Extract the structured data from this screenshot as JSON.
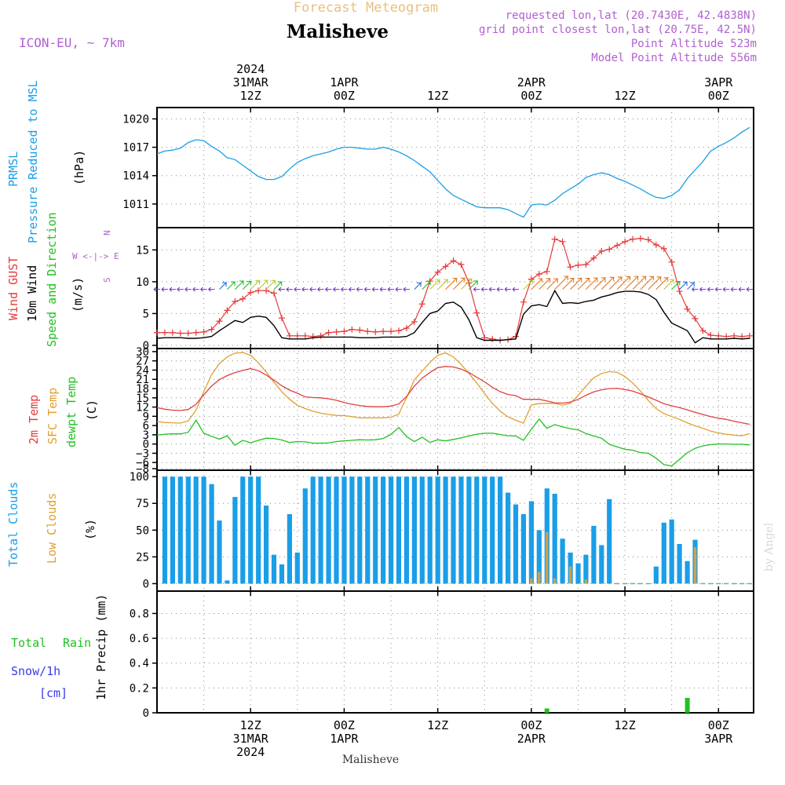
{
  "header": {
    "forecast_title": "Forecast Meteogram",
    "location": "Malisheve",
    "model": "ICON-EU, ~ 7km",
    "requested": "requested lon,lat (20.7430E, 42.4838N)",
    "gridpoint": "grid point closest lon,lat (20.75E, 42.5N)",
    "point_alt": "Point Altitude 523m",
    "model_alt": "Model Point Altitude 556m",
    "footer_location": "Malisheve",
    "credit": "by Angel"
  },
  "colors": {
    "pressure": "#1a9ee8",
    "gust": "#e63a3a",
    "wind": "#000000",
    "t2m": "#e04040",
    "sfc": "#e0a030",
    "dewpt": "#22c022",
    "total_clouds": "#1a9ee8",
    "low_clouds": "#c8a450",
    "rain": "#22c022",
    "snow": "#3a3aee",
    "header_purple": "#b060d0",
    "title_orange": "#e8c080"
  },
  "time_axis": {
    "top_labels": [
      {
        "x": 12,
        "lines": [
          "2024",
          "31MAR",
          "12Z"
        ]
      },
      {
        "x": 24,
        "lines": [
          "1APR",
          "00Z"
        ]
      },
      {
        "x": 36,
        "lines": [
          "12Z"
        ]
      },
      {
        "x": 48,
        "lines": [
          "2APR",
          "00Z"
        ]
      },
      {
        "x": 60,
        "lines": [
          "12Z"
        ]
      },
      {
        "x": 72,
        "lines": [
          "3APR",
          "00Z"
        ]
      }
    ],
    "bottom_labels": [
      {
        "x": 12,
        "lines": [
          "12Z",
          "31MAR",
          "2024"
        ]
      },
      {
        "x": 24,
        "lines": [
          "00Z",
          "1APR"
        ]
      },
      {
        "x": 36,
        "lines": [
          "12Z"
        ]
      },
      {
        "x": 48,
        "lines": [
          "00Z",
          "2APR"
        ]
      },
      {
        "x": 60,
        "lines": [
          "12Z"
        ]
      },
      {
        "x": 72,
        "lines": [
          "00Z",
          "3APR"
        ]
      }
    ],
    "range_hours": [
      0,
      76.5
    ]
  },
  "panels": {
    "pressure": {
      "labels": [
        "PRMSL",
        "Pressure Reduced to MSL",
        "(hPa)"
      ]
    },
    "wind": {
      "labels": [
        "Wind GUST",
        "10m Wind",
        "Speed and Direction",
        "(m/s)"
      ],
      "compass": [
        "N",
        "W <-|-> E",
        "S"
      ]
    },
    "temp": {
      "labels": [
        "2m Temp",
        "SFC Temp",
        "dewpt Temp",
        "(C)"
      ]
    },
    "clouds": {
      "labels": [
        "Total Clouds",
        "Low Clouds",
        "(%)"
      ]
    },
    "precip": {
      "labels": [
        "Total",
        "Rain",
        "Snow/1h",
        "[cm]",
        "1hr Precip (mm)"
      ]
    }
  },
  "chart_data": [
    {
      "type": "line",
      "ylabel": "Pressure Reduced to MSL (hPa)",
      "ylim": [
        1008.5,
        1021.2
      ],
      "yticks": [
        1011,
        1014,
        1017,
        1020
      ],
      "x": [
        0,
        1,
        2,
        3,
        4,
        5,
        6,
        7,
        8,
        9,
        10,
        11,
        12,
        13,
        14,
        15,
        16,
        17,
        18,
        19,
        20,
        21,
        22,
        23,
        24,
        25,
        26,
        27,
        28,
        29,
        30,
        31,
        32,
        33,
        34,
        35,
        36,
        37,
        38,
        39,
        40,
        41,
        42,
        43,
        44,
        45,
        46,
        47,
        48,
        49,
        50,
        51,
        52,
        53,
        54,
        55,
        56,
        57,
        58,
        59,
        60,
        61,
        62,
        63,
        64,
        65,
        66,
        67,
        68,
        69,
        70,
        71,
        72,
        73,
        74,
        75,
        76
      ],
      "series": [
        {
          "name": "PRMSL",
          "values": [
            1016.3,
            1016.6,
            1016.7,
            1016.9,
            1017.5,
            1017.8,
            1017.7,
            1017.1,
            1016.6,
            1015.9,
            1015.7,
            1015.1,
            1014.5,
            1013.9,
            1013.6,
            1013.6,
            1013.9,
            1014.7,
            1015.4,
            1015.8,
            1016.1,
            1016.3,
            1016.5,
            1016.8,
            1017.0,
            1017.0,
            1016.9,
            1016.8,
            1016.8,
            1017.0,
            1016.8,
            1016.5,
            1016.1,
            1015.6,
            1015.0,
            1014.4,
            1013.5,
            1012.6,
            1011.9,
            1011.5,
            1011.1,
            1010.7,
            1010.6,
            1010.6,
            1010.6,
            1010.4,
            1010.0,
            1009.6,
            1010.9,
            1011.0,
            1010.9,
            1011.4,
            1012.1,
            1012.6,
            1013.1,
            1013.8,
            1014.1,
            1014.3,
            1014.1,
            1013.7,
            1013.4,
            1013.0,
            1012.6,
            1012.1,
            1011.7,
            1011.6,
            1011.9,
            1012.5,
            1013.7,
            1014.6,
            1015.5,
            1016.6,
            1017.1,
            1017.5,
            1018.0,
            1018.6,
            1019.1
          ]
        }
      ]
    },
    {
      "type": "line",
      "ylabel": "(m/s)",
      "ylim": [
        -0.5,
        18.5
      ],
      "yticks": [
        0,
        5,
        10,
        15
      ],
      "x": [
        0,
        1,
        2,
        3,
        4,
        5,
        6,
        7,
        8,
        9,
        10,
        11,
        12,
        13,
        14,
        15,
        16,
        17,
        18,
        19,
        20,
        21,
        22,
        23,
        24,
        25,
        26,
        27,
        28,
        29,
        30,
        31,
        32,
        33,
        34,
        35,
        36,
        37,
        38,
        39,
        40,
        41,
        42,
        43,
        44,
        45,
        46,
        47,
        48,
        49,
        50,
        51,
        52,
        53,
        54,
        55,
        56,
        57,
        58,
        59,
        60,
        61,
        62,
        63,
        64,
        65,
        66,
        67,
        68,
        69,
        70,
        71,
        72,
        73,
        74,
        75,
        76
      ],
      "series": [
        {
          "name": "Wind GUST",
          "values": [
            2.0,
            2.0,
            2.0,
            1.9,
            1.9,
            2.0,
            2.1,
            2.5,
            3.8,
            5.5,
            6.9,
            7.3,
            8.3,
            8.6,
            8.6,
            8.2,
            4.3,
            1.5,
            1.5,
            1.5,
            1.4,
            1.5,
            2.0,
            2.1,
            2.2,
            2.5,
            2.4,
            2.2,
            2.1,
            2.2,
            2.2,
            2.3,
            2.7,
            3.7,
            6.5,
            10.1,
            11.5,
            12.4,
            13.3,
            12.7,
            9.8,
            5.1,
            1.2,
            1.0,
            0.8,
            0.9,
            1.4,
            6.8,
            10.4,
            11.2,
            11.6,
            16.7,
            16.3,
            12.3,
            12.6,
            12.7,
            13.7,
            14.8,
            15.1,
            15.7,
            16.3,
            16.7,
            16.8,
            16.6,
            15.8,
            15.2,
            13.1,
            8.5,
            5.7,
            4.2,
            2.3,
            1.6,
            1.5,
            1.4,
            1.5,
            1.4,
            1.5
          ]
        },
        {
          "name": "10m Wind",
          "values": [
            1.1,
            1.2,
            1.2,
            1.2,
            1.1,
            1.1,
            1.2,
            1.4,
            2.3,
            3.1,
            3.9,
            3.6,
            4.4,
            4.6,
            4.4,
            3.1,
            1.2,
            1.0,
            1.0,
            1.0,
            1.2,
            1.3,
            1.3,
            1.3,
            1.3,
            1.3,
            1.2,
            1.2,
            1.2,
            1.3,
            1.3,
            1.3,
            1.4,
            2.0,
            3.6,
            5.0,
            5.4,
            6.6,
            6.8,
            6.0,
            4.0,
            1.2,
            0.8,
            0.8,
            0.8,
            0.9,
            1.0,
            4.9,
            6.2,
            6.4,
            6.1,
            8.6,
            6.6,
            6.7,
            6.6,
            6.9,
            7.1,
            7.6,
            7.9,
            8.3,
            8.5,
            8.5,
            8.4,
            8.0,
            7.2,
            5.2,
            3.5,
            2.9,
            2.3,
            0.4,
            1.2,
            1.0,
            1.0,
            1.0,
            1.1,
            1.0,
            1.1
          ]
        }
      ]
    },
    {
      "type": "line",
      "ylabel": "(C)",
      "ylim": [
        -8.5,
        31
      ],
      "yticks": [
        -8,
        -6,
        -3,
        0,
        3,
        6,
        9,
        12,
        15,
        18,
        21,
        24,
        27,
        30
      ],
      "x": [
        0,
        1,
        2,
        3,
        4,
        5,
        6,
        7,
        8,
        9,
        10,
        11,
        12,
        13,
        14,
        15,
        16,
        17,
        18,
        19,
        20,
        21,
        22,
        23,
        24,
        25,
        26,
        27,
        28,
        29,
        30,
        31,
        32,
        33,
        34,
        35,
        36,
        37,
        38,
        39,
        40,
        41,
        42,
        43,
        44,
        45,
        46,
        47,
        48,
        49,
        50,
        51,
        52,
        53,
        54,
        55,
        56,
        57,
        58,
        59,
        60,
        61,
        62,
        63,
        64,
        65,
        66,
        67,
        68,
        69,
        70,
        71,
        72,
        73,
        74,
        75,
        76
      ],
      "series": [
        {
          "name": "2m Temp",
          "values": [
            11.8,
            11.3,
            11.0,
            10.9,
            11.2,
            12.9,
            16.0,
            18.8,
            20.9,
            22.2,
            23.2,
            23.9,
            24.5,
            23.8,
            22.4,
            20.7,
            18.9,
            17.5,
            16.5,
            15.3,
            15.1,
            15.0,
            14.7,
            14.2,
            13.5,
            12.9,
            12.5,
            12.2,
            12.1,
            12.1,
            12.3,
            13.0,
            15.4,
            18.8,
            21.4,
            23.2,
            24.8,
            25.2,
            25.0,
            24.3,
            23.2,
            21.7,
            20.2,
            18.4,
            17.0,
            16.1,
            15.7,
            14.5,
            14.5,
            14.5,
            14.0,
            13.4,
            13.3,
            13.6,
            14.5,
            15.8,
            16.9,
            17.6,
            18.0,
            18.1,
            17.7,
            17.2,
            16.3,
            15.3,
            14.2,
            13.1,
            12.4,
            11.8,
            11.1,
            10.3,
            9.6,
            8.9,
            8.4,
            8.0,
            7.4,
            6.9,
            6.4
          ]
        },
        {
          "name": "SFC Temp",
          "values": [
            7.3,
            7.0,
            6.9,
            6.8,
            7.5,
            11.0,
            17.0,
            22.5,
            26.1,
            28.3,
            29.5,
            29.7,
            28.8,
            26.4,
            23.4,
            20.1,
            17.0,
            14.5,
            12.6,
            11.5,
            10.7,
            10.0,
            9.6,
            9.3,
            9.2,
            8.9,
            8.5,
            8.5,
            8.5,
            8.5,
            8.7,
            9.7,
            15.1,
            20.8,
            23.7,
            26.5,
            28.8,
            29.6,
            28.3,
            25.8,
            22.9,
            19.8,
            16.4,
            13.2,
            10.7,
            8.8,
            7.7,
            6.8,
            12.7,
            13.1,
            13.2,
            13.2,
            12.6,
            13.2,
            15.8,
            18.8,
            21.5,
            22.9,
            23.5,
            23.3,
            21.9,
            19.8,
            17.2,
            14.1,
            11.5,
            9.9,
            8.9,
            8.0,
            6.9,
            5.9,
            5.1,
            4.2,
            3.6,
            3.2,
            2.9,
            2.7,
            3.4
          ]
        },
        {
          "name": "dewpt Temp",
          "values": [
            2.9,
            3.2,
            3.3,
            3.3,
            3.8,
            7.7,
            3.5,
            2.5,
            1.6,
            2.7,
            -0.4,
            1.2,
            0.4,
            1.2,
            1.9,
            1.8,
            1.3,
            0.5,
            0.8,
            0.7,
            0.3,
            0.3,
            0.4,
            0.8,
            1.0,
            1.2,
            1.4,
            1.3,
            1.4,
            1.8,
            3.1,
            5.4,
            2.4,
            0.8,
            2.2,
            0.5,
            1.4,
            1.0,
            1.5,
            2.0,
            2.6,
            3.2,
            3.5,
            3.5,
            3.1,
            2.7,
            2.6,
            1.2,
            4.8,
            8.1,
            5.1,
            6.3,
            5.6,
            5.0,
            4.6,
            3.4,
            2.6,
            1.9,
            -0.1,
            -0.9,
            -1.7,
            -2.0,
            -2.8,
            -3.0,
            -4.6,
            -6.7,
            -7.1,
            -5.0,
            -2.8,
            -1.4,
            -0.6,
            -0.2,
            0.0,
            0.0,
            -0.1,
            -0.1,
            -0.3
          ]
        }
      ]
    },
    {
      "type": "bar",
      "ylabel": "(%)",
      "ylim": [
        -7,
        106
      ],
      "yticks": [
        0,
        25,
        50,
        75,
        100
      ],
      "x": [
        1,
        2,
        3,
        4,
        5,
        6,
        7,
        8,
        9,
        10,
        11,
        12,
        13,
        14,
        15,
        16,
        17,
        18,
        19,
        20,
        21,
        22,
        23,
        24,
        25,
        26,
        27,
        28,
        29,
        30,
        31,
        32,
        33,
        34,
        35,
        36,
        37,
        38,
        39,
        40,
        41,
        42,
        43,
        44,
        45,
        46,
        47,
        48,
        49,
        50,
        51,
        52,
        53,
        54,
        55,
        56,
        57,
        58,
        59,
        60,
        61,
        62,
        63,
        64,
        65,
        66,
        67,
        68,
        69,
        70,
        71,
        72,
        73,
        74,
        75,
        76
      ],
      "series": [
        {
          "name": "Total Clouds",
          "values": [
            100,
            100,
            100,
            100,
            100,
            100,
            93,
            59,
            3,
            81,
            100,
            100,
            100,
            73,
            27,
            18,
            65,
            29,
            89,
            100,
            100,
            100,
            100,
            100,
            100,
            100,
            100,
            100,
            100,
            100,
            100,
            100,
            100,
            100,
            100,
            100,
            100,
            100,
            100,
            100,
            100,
            100,
            100,
            100,
            85,
            74,
            65,
            77,
            50,
            89,
            84,
            42,
            29,
            19,
            27,
            54,
            36,
            79,
            0,
            0,
            0,
            0,
            0,
            16,
            57,
            60,
            37,
            21,
            41,
            0,
            0,
            0,
            0,
            0,
            0,
            0
          ]
        },
        {
          "name": "Low Clouds",
          "values": [
            0,
            0,
            0,
            0,
            0,
            0,
            0,
            0,
            0,
            0,
            0,
            0,
            0,
            0,
            0,
            0,
            0,
            0,
            0,
            0,
            0,
            0,
            0,
            0,
            0,
            0,
            0,
            0,
            0,
            0,
            0,
            0,
            0,
            0,
            0,
            0,
            0,
            0,
            0,
            0,
            0,
            0,
            0,
            0,
            0,
            0,
            0,
            5,
            11,
            48,
            5,
            0,
            16,
            0,
            4,
            0,
            0,
            0,
            0,
            0,
            0,
            0,
            0,
            0,
            0,
            0,
            0,
            0,
            34,
            0,
            0,
            0,
            0,
            0,
            0,
            0
          ]
        }
      ]
    },
    {
      "type": "bar",
      "ylabel": "1hr Precip (mm)",
      "ylim": [
        0,
        0.98
      ],
      "yticks": [
        0,
        0.2,
        0.4,
        0.6,
        0.8
      ],
      "x": [
        50,
        68
      ],
      "series": [
        {
          "name": "Total Rain",
          "values": [
            0.035,
            0.12
          ]
        }
      ]
    }
  ]
}
